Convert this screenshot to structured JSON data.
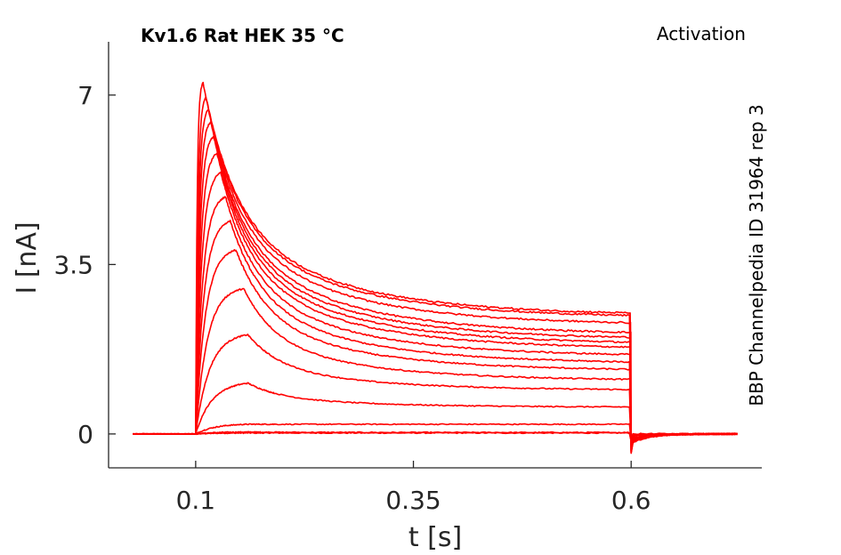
{
  "chart_data": {
    "type": "line",
    "title": "Kv1.6  Rat  HEK  35 °C",
    "subtitle": "Activation",
    "side_annotation": "BBP Channelpedia ID 31964 rep 3",
    "xlabel": "t [s]",
    "ylabel": "I [nA]",
    "xlim": [
      0.0,
      0.75
    ],
    "ylim": [
      -0.7,
      8.1
    ],
    "xticks": [
      0.1,
      0.35,
      0.6
    ],
    "xtick_labels": [
      "0.1",
      "0.35",
      "0.6"
    ],
    "yticks": [
      0,
      3.5,
      7
    ],
    "ytick_labels": [
      "0",
      "3.5",
      "7"
    ],
    "grid": false,
    "color": "#ff0000",
    "pulse_start": 0.1,
    "pulse_end": 0.6,
    "trace_start": 0.028,
    "trace_end": 0.725,
    "series": [
      {
        "peak": 0.02,
        "steady": 0.02
      },
      {
        "peak": 0.04,
        "steady": 0.03
      },
      {
        "peak": 0.2,
        "steady": 0.2
      },
      {
        "peak": 1.05,
        "steady": 0.55
      },
      {
        "peak": 2.05,
        "steady": 0.9
      },
      {
        "peak": 3.0,
        "steady": 1.1
      },
      {
        "peak": 3.8,
        "steady": 1.3
      },
      {
        "peak": 4.4,
        "steady": 1.45
      },
      {
        "peak": 4.9,
        "steady": 1.6
      },
      {
        "peak": 5.4,
        "steady": 1.75
      },
      {
        "peak": 5.8,
        "steady": 1.85
      },
      {
        "peak": 6.15,
        "steady": 1.95
      },
      {
        "peak": 6.45,
        "steady": 2.05
      },
      {
        "peak": 6.7,
        "steady": 2.25
      },
      {
        "peak": 6.95,
        "steady": 2.4
      },
      {
        "peak": 7.25,
        "steady": 2.45
      }
    ]
  }
}
